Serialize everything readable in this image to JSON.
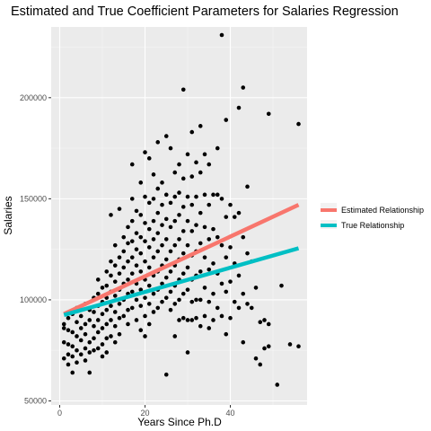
{
  "chart_data": {
    "type": "scatter",
    "title": "Estimated and True Coefficient Parameters for Salaries Regression",
    "xlabel": "Years Since Ph.D",
    "ylabel": "Salaries",
    "xlim": [
      -2,
      58
    ],
    "ylim": [
      48000,
      235000
    ],
    "x_ticks": [
      0,
      20,
      40
    ],
    "x_tick_labels": [
      "0",
      "20",
      "40"
    ],
    "y_ticks": [
      50000,
      100000,
      150000,
      200000
    ],
    "y_tick_labels": [
      "50000",
      "100000",
      "150000",
      "200000"
    ],
    "grid": true,
    "legend_position": "right",
    "lines": [
      {
        "name": "Estimated Relationship",
        "color": "#f8766d",
        "x": [
          1,
          56
        ],
        "y": [
          93000,
          147000
        ]
      },
      {
        "name": "True Relationship",
        "color": "#00bfc4",
        "x": [
          1,
          56
        ],
        "y": [
          92500,
          125500
        ]
      }
    ],
    "points": [
      [
        1,
        88000
      ],
      [
        1,
        79000
      ],
      [
        1,
        71000
      ],
      [
        1,
        86000
      ],
      [
        2,
        85000
      ],
      [
        2,
        91000
      ],
      [
        2,
        78000
      ],
      [
        2,
        73000
      ],
      [
        2,
        68000
      ],
      [
        3,
        93000
      ],
      [
        3,
        84000
      ],
      [
        3,
        77000
      ],
      [
        3,
        72000
      ],
      [
        3,
        64000
      ],
      [
        4,
        96000
      ],
      [
        4,
        89000
      ],
      [
        4,
        82000
      ],
      [
        4,
        75000
      ],
      [
        4,
        69000
      ],
      [
        5,
        92000
      ],
      [
        5,
        86000
      ],
      [
        5,
        80000
      ],
      [
        5,
        73000
      ],
      [
        6,
        98000
      ],
      [
        6,
        88000
      ],
      [
        6,
        83000
      ],
      [
        6,
        76000
      ],
      [
        6,
        70000
      ],
      [
        7,
        95000
      ],
      [
        7,
        90000
      ],
      [
        7,
        79000
      ],
      [
        7,
        74000
      ],
      [
        7,
        64000
      ],
      [
        8,
        101000
      ],
      [
        8,
        94000
      ],
      [
        8,
        87000
      ],
      [
        8,
        81000
      ],
      [
        8,
        75000
      ],
      [
        9,
        110000
      ],
      [
        9,
        103000
      ],
      [
        9,
        97000
      ],
      [
        9,
        90000
      ],
      [
        9,
        84000
      ],
      [
        9,
        76000
      ],
      [
        10,
        106000
      ],
      [
        10,
        99000
      ],
      [
        10,
        93000
      ],
      [
        10,
        86000
      ],
      [
        10,
        78000
      ],
      [
        10,
        72000
      ],
      [
        11,
        114000
      ],
      [
        11,
        107000
      ],
      [
        11,
        101000
      ],
      [
        11,
        95000
      ],
      [
        11,
        88000
      ],
      [
        11,
        81000
      ],
      [
        11,
        74000
      ],
      [
        12,
        142000
      ],
      [
        12,
        119000
      ],
      [
        12,
        112000
      ],
      [
        12,
        104000
      ],
      [
        12,
        97000
      ],
      [
        12,
        90000
      ],
      [
        12,
        82000
      ],
      [
        13,
        127000
      ],
      [
        13,
        117000
      ],
      [
        13,
        109000
      ],
      [
        13,
        102000
      ],
      [
        13,
        94000
      ],
      [
        13,
        87000
      ],
      [
        13,
        79000
      ],
      [
        14,
        145000
      ],
      [
        14,
        121000
      ],
      [
        14,
        113000
      ],
      [
        14,
        105000
      ],
      [
        14,
        98000
      ],
      [
        14,
        91000
      ],
      [
        14,
        83000
      ],
      [
        15,
        131000
      ],
      [
        15,
        124000
      ],
      [
        15,
        116000
      ],
      [
        15,
        108000
      ],
      [
        15,
        100000
      ],
      [
        15,
        92000
      ],
      [
        16,
        136000
      ],
      [
        16,
        128000
      ],
      [
        16,
        119000
      ],
      [
        16,
        110000
      ],
      [
        16,
        103000
      ],
      [
        16,
        95000
      ],
      [
        16,
        88000
      ],
      [
        17,
        167000
      ],
      [
        17,
        150000
      ],
      [
        17,
        139000
      ],
      [
        17,
        129000
      ],
      [
        17,
        121000
      ],
      [
        17,
        113000
      ],
      [
        17,
        104000
      ],
      [
        17,
        96000
      ],
      [
        18,
        144000
      ],
      [
        18,
        133000
      ],
      [
        18,
        125000
      ],
      [
        18,
        117000
      ],
      [
        18,
        108000
      ],
      [
        18,
        100000
      ],
      [
        18,
        90000
      ],
      [
        19,
        158000
      ],
      [
        19,
        142000
      ],
      [
        19,
        131000
      ],
      [
        19,
        123000
      ],
      [
        19,
        114000
      ],
      [
        19,
        105000
      ],
      [
        19,
        97000
      ],
      [
        19,
        85000
      ],
      [
        20,
        173000
      ],
      [
        20,
        151000
      ],
      [
        20,
        138000
      ],
      [
        20,
        129000
      ],
      [
        20,
        119000
      ],
      [
        20,
        110000
      ],
      [
        20,
        101000
      ],
      [
        20,
        92000
      ],
      [
        20,
        82000
      ],
      [
        21,
        170000
      ],
      [
        21,
        148000
      ],
      [
        21,
        135000
      ],
      [
        21,
        126000
      ],
      [
        21,
        116000
      ],
      [
        21,
        107000
      ],
      [
        21,
        98000
      ],
      [
        21,
        88000
      ],
      [
        22,
        162000
      ],
      [
        22,
        150000
      ],
      [
        22,
        139000
      ],
      [
        22,
        130000
      ],
      [
        22,
        121000
      ],
      [
        22,
        112000
      ],
      [
        22,
        103000
      ],
      [
        22,
        94000
      ],
      [
        23,
        178000
      ],
      [
        23,
        155000
      ],
      [
        23,
        143000
      ],
      [
        23,
        133000
      ],
      [
        23,
        124000
      ],
      [
        23,
        114000
      ],
      [
        23,
        105000
      ],
      [
        23,
        96000
      ],
      [
        24,
        158000
      ],
      [
        24,
        147000
      ],
      [
        24,
        137000
      ],
      [
        24,
        127000
      ],
      [
        24,
        117000
      ],
      [
        24,
        108000
      ],
      [
        24,
        99000
      ],
      [
        25,
        181000
      ],
      [
        25,
        152000
      ],
      [
        25,
        140000
      ],
      [
        25,
        130000
      ],
      [
        25,
        120000
      ],
      [
        25,
        111000
      ],
      [
        25,
        101000
      ],
      [
        25,
        63000
      ],
      [
        26,
        175000
      ],
      [
        26,
        148000
      ],
      [
        26,
        136000
      ],
      [
        26,
        124000
      ],
      [
        26,
        114000
      ],
      [
        26,
        104000
      ],
      [
        26,
        95000
      ],
      [
        27,
        163000
      ],
      [
        27,
        151000
      ],
      [
        27,
        139000
      ],
      [
        27,
        127000
      ],
      [
        27,
        117000
      ],
      [
        27,
        107000
      ],
      [
        27,
        98000
      ],
      [
        27,
        82000
      ],
      [
        28,
        167000
      ],
      [
        28,
        153000
      ],
      [
        28,
        142000
      ],
      [
        28,
        130000
      ],
      [
        28,
        120000
      ],
      [
        28,
        110000
      ],
      [
        28,
        100000
      ],
      [
        28,
        90000
      ],
      [
        29,
        204000
      ],
      [
        29,
        160000
      ],
      [
        29,
        146000
      ],
      [
        29,
        134000
      ],
      [
        29,
        123000
      ],
      [
        29,
        113000
      ],
      [
        29,
        103000
      ],
      [
        29,
        91000
      ],
      [
        30,
        172000
      ],
      [
        30,
        151000
      ],
      [
        30,
        139000
      ],
      [
        30,
        127000
      ],
      [
        30,
        116000
      ],
      [
        30,
        105000
      ],
      [
        30,
        90000
      ],
      [
        30,
        74000
      ],
      [
        31,
        183000
      ],
      [
        31,
        161000
      ],
      [
        31,
        147000
      ],
      [
        31,
        134000
      ],
      [
        31,
        122000
      ],
      [
        31,
        110000
      ],
      [
        31,
        99000
      ],
      [
        31,
        90000
      ],
      [
        32,
        168000
      ],
      [
        32,
        151000
      ],
      [
        32,
        137000
      ],
      [
        32,
        124000
      ],
      [
        32,
        112000
      ],
      [
        32,
        100000
      ],
      [
        32,
        91000
      ],
      [
        33,
        186000
      ],
      [
        33,
        163000
      ],
      [
        33,
        143000
      ],
      [
        33,
        128000
      ],
      [
        33,
        114000
      ],
      [
        33,
        100000
      ],
      [
        33,
        87000
      ],
      [
        34,
        172000
      ],
      [
        34,
        152000
      ],
      [
        34,
        136000
      ],
      [
        34,
        121000
      ],
      [
        34,
        106000
      ],
      [
        34,
        92000
      ],
      [
        35,
        167000
      ],
      [
        35,
        147000
      ],
      [
        35,
        130000
      ],
      [
        35,
        115000
      ],
      [
        35,
        99000
      ],
      [
        35,
        86000
      ],
      [
        36,
        152000
      ],
      [
        36,
        135000
      ],
      [
        36,
        118000
      ],
      [
        36,
        103000
      ],
      [
        36,
        90000
      ],
      [
        37,
        175000
      ],
      [
        37,
        152000
      ],
      [
        37,
        131000
      ],
      [
        37,
        113000
      ],
      [
        37,
        96000
      ],
      [
        38,
        231000
      ],
      [
        38,
        150000
      ],
      [
        38,
        127000
      ],
      [
        38,
        108000
      ],
      [
        38,
        92000
      ],
      [
        39,
        189000
      ],
      [
        39,
        141000
      ],
      [
        39,
        121000
      ],
      [
        39,
        104000
      ],
      [
        39,
        83000
      ],
      [
        40,
        147000
      ],
      [
        40,
        126000
      ],
      [
        40,
        109000
      ],
      [
        40,
        91000
      ],
      [
        41,
        141000
      ],
      [
        41,
        118000
      ],
      [
        41,
        99000
      ],
      [
        42,
        195000
      ],
      [
        42,
        143000
      ],
      [
        42,
        112000
      ],
      [
        42,
        96000
      ],
      [
        43,
        205000
      ],
      [
        43,
        131000
      ],
      [
        43,
        103000
      ],
      [
        43,
        79000
      ],
      [
        44,
        156000
      ],
      [
        44,
        123000
      ],
      [
        44,
        98000
      ],
      [
        45,
        119000
      ],
      [
        45,
        96000
      ],
      [
        46,
        106000
      ],
      [
        46,
        71000
      ],
      [
        47,
        89000
      ],
      [
        47,
        68000
      ],
      [
        48,
        90000
      ],
      [
        48,
        76000
      ],
      [
        49,
        192000
      ],
      [
        49,
        88000
      ],
      [
        49,
        77000
      ],
      [
        51,
        58000
      ],
      [
        52,
        107000
      ],
      [
        54,
        78000
      ],
      [
        56,
        187000
      ],
      [
        56,
        77000
      ]
    ]
  },
  "legend": {
    "items": [
      {
        "label": "Estimated Relationship",
        "color": "#f8766d"
      },
      {
        "label": "True Relationship",
        "color": "#00bfc4"
      }
    ]
  },
  "colors": {
    "panel_background": "#ebebeb",
    "grid_major": "#ffffff",
    "points": "#000000"
  }
}
